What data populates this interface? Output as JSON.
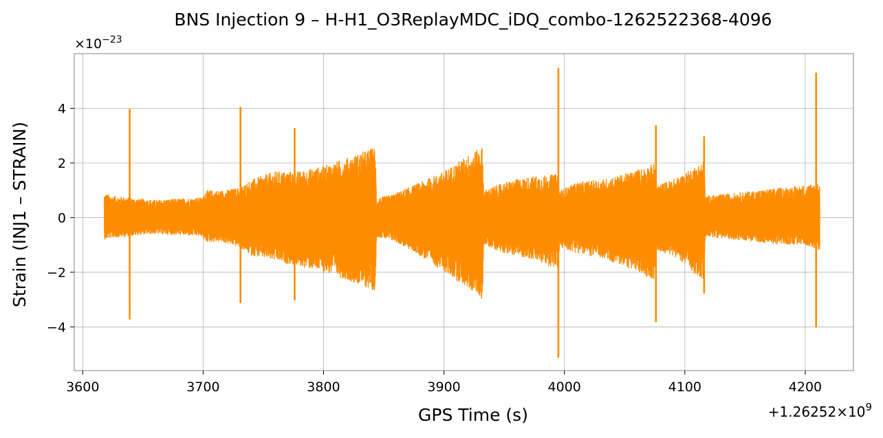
{
  "chart_data": {
    "type": "line",
    "title": "BNS Injection 9 – H-H1_O3ReplayMDC_iDQ_combo-1262522368-4096",
    "xlabel": "GPS Time (s)",
    "ylabel": "Strain (INJ1 – STRAIN)",
    "x_offset_label": "+1.26252×10",
    "x_offset_exponent": "9",
    "y_scale_label": "×10",
    "y_scale_exponent": "−23",
    "xlim": [
      3593,
      4240
    ],
    "ylim": [
      -5.6,
      6.0
    ],
    "x_ticks": [
      3600,
      3700,
      3800,
      3900,
      4000,
      4100,
      4200
    ],
    "x_tick_labels": [
      "3600",
      "3700",
      "3800",
      "3900",
      "4000",
      "4100",
      "4200"
    ],
    "y_ticks": [
      -4,
      -2,
      0,
      2,
      4
    ],
    "y_tick_labels": [
      "−4",
      "−2",
      "0",
      "2",
      "4"
    ],
    "grid": true,
    "line_color": "#ff8c00",
    "series": [
      {
        "x_range": [
          3618,
          4212
        ],
        "envelope_x": [
          3618,
          3625,
          3638,
          3645,
          3660,
          3680,
          3700,
          3701,
          3715,
          3730,
          3740,
          3760,
          3780,
          3800,
          3820,
          3843,
          3844,
          3860,
          3880,
          3900,
          3920,
          3932,
          3933,
          3950,
          3970,
          3995,
          3996,
          4010,
          4030,
          4050,
          4075,
          4077,
          4095,
          4116,
          4117,
          4140,
          4160,
          4180,
          4200,
          4212
        ],
        "envelope_upper": [
          0.9,
          0.8,
          0.75,
          0.7,
          0.65,
          0.7,
          0.75,
          1.0,
          1.0,
          1.1,
          1.4,
          1.7,
          1.7,
          1.9,
          2.2,
          2.6,
          0.7,
          0.9,
          1.3,
          1.7,
          2.3,
          2.6,
          1.0,
          1.3,
          1.5,
          1.6,
          1.0,
          1.3,
          1.4,
          1.6,
          2.0,
          1.2,
          1.5,
          2.1,
          0.8,
          0.9,
          1.0,
          1.1,
          1.2,
          1.3
        ],
        "envelope_lower": [
          -0.8,
          -0.75,
          -0.7,
          -0.65,
          -0.6,
          -0.65,
          -0.7,
          -0.9,
          -0.9,
          -1.1,
          -1.4,
          -1.6,
          -1.8,
          -2.0,
          -2.3,
          -2.7,
          -0.7,
          -0.9,
          -1.4,
          -2.0,
          -2.6,
          -3.0,
          -1.0,
          -1.3,
          -1.5,
          -1.9,
          -1.1,
          -1.3,
          -1.5,
          -1.8,
          -2.3,
          -1.2,
          -1.5,
          -2.4,
          -0.7,
          -0.8,
          -0.9,
          -1.0,
          -1.0,
          -1.2
        ],
        "spikes": [
          {
            "x": 3639,
            "max": 3.95,
            "min": -3.7
          },
          {
            "x": 3731,
            "max": 4.03,
            "min": -3.1
          },
          {
            "x": 3776,
            "max": 3.25,
            "min": -3.0
          },
          {
            "x": 3995,
            "max": 5.45,
            "min": -5.1
          },
          {
            "x": 4076,
            "max": 3.35,
            "min": -3.8
          },
          {
            "x": 4116,
            "max": 2.95,
            "min": -2.75
          },
          {
            "x": 4209,
            "max": 5.28,
            "min": -4.0
          }
        ]
      }
    ]
  }
}
